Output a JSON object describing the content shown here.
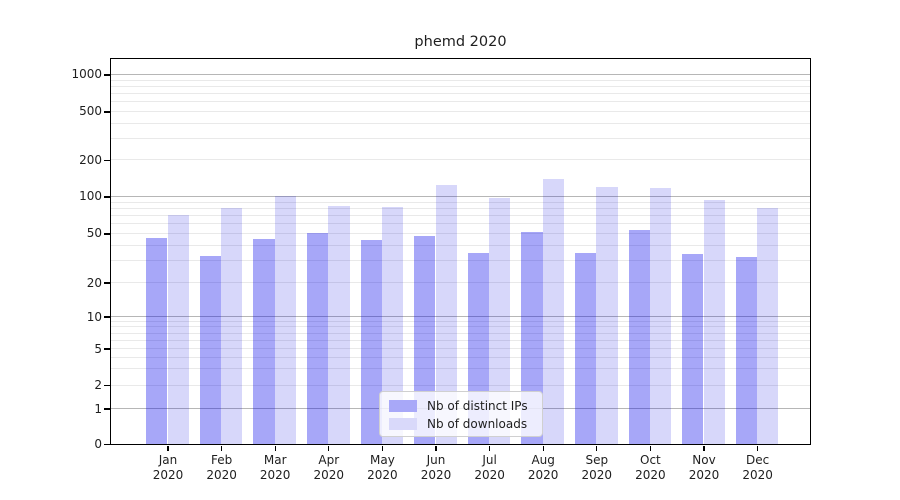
{
  "figure": {
    "background": "#ffffff"
  },
  "chart_data": {
    "type": "bar",
    "title": "phemd 2020",
    "categories": [
      "Jan",
      "Feb",
      "Mar",
      "Apr",
      "May",
      "Jun",
      "Jul",
      "Aug",
      "Sep",
      "Oct",
      "Nov",
      "Dec"
    ],
    "x_tick_second_line": "2020",
    "series": [
      {
        "name": "Nb of distinct IPs",
        "color": "#a8a8f8",
        "values": [
          46,
          33,
          45,
          50,
          44,
          48,
          35,
          51,
          35,
          53,
          34,
          32
        ]
      },
      {
        "name": "Nb of downloads",
        "color": "#d9d9fa",
        "values": [
          71,
          80,
          100,
          84,
          82,
          124,
          97,
          140,
          120,
          118,
          94,
          80
        ]
      }
    ],
    "xlabel": "",
    "ylabel": "",
    "yscale": "symlog",
    "yticks": [
      0,
      1,
      2,
      5,
      10,
      20,
      50,
      100,
      200,
      500,
      1000
    ],
    "ylim": [
      0,
      1300
    ],
    "grid": {
      "horizontal": true,
      "minor_log_lines": true
    },
    "legend": {
      "position": "lower center"
    }
  },
  "colors": {
    "bar_distinct_ips": "#a8a8f8",
    "bar_downloads": "#d9d9fa",
    "major_grid": "#b6b6b6",
    "minor_grid": "#e9e9e9",
    "spine": "#000000",
    "text": "#1f1f1f"
  }
}
